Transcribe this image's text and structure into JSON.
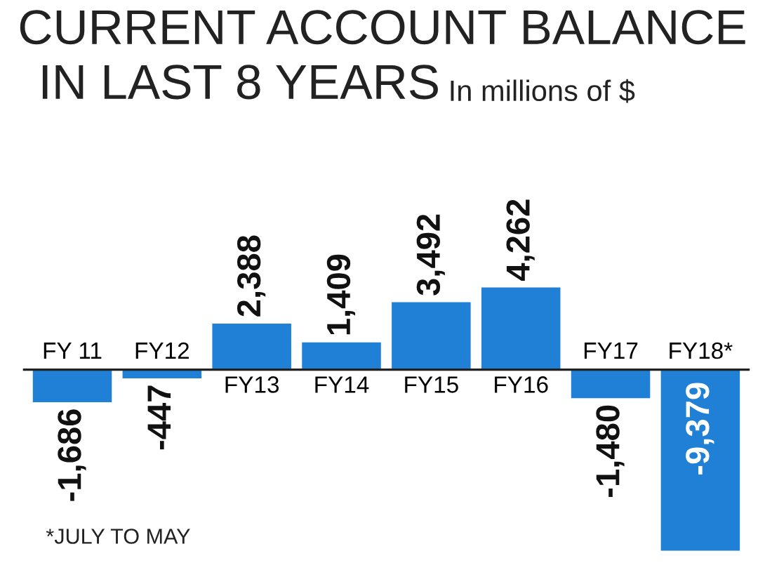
{
  "chart_data": {
    "type": "bar",
    "title": "CURRENT ACCOUNT BALANCE\nIN LAST 8 YEARS",
    "subtitle": "In millions of $",
    "categories": [
      "FY 11",
      "FY12",
      "FY13",
      "FY14",
      "FY15",
      "FY16",
      "FY17",
      "FY18*"
    ],
    "values": [
      -1686,
      -447,
      2388,
      1409,
      3492,
      4262,
      -1480,
      -9379
    ],
    "value_labels": [
      "-1,686",
      "-447",
      "2,388",
      "1,409",
      "3,492",
      "4,262",
      "-1,480",
      "-9,379"
    ],
    "color": "#1f80d6",
    "annotations": [
      "*JULY TO MAY"
    ]
  }
}
